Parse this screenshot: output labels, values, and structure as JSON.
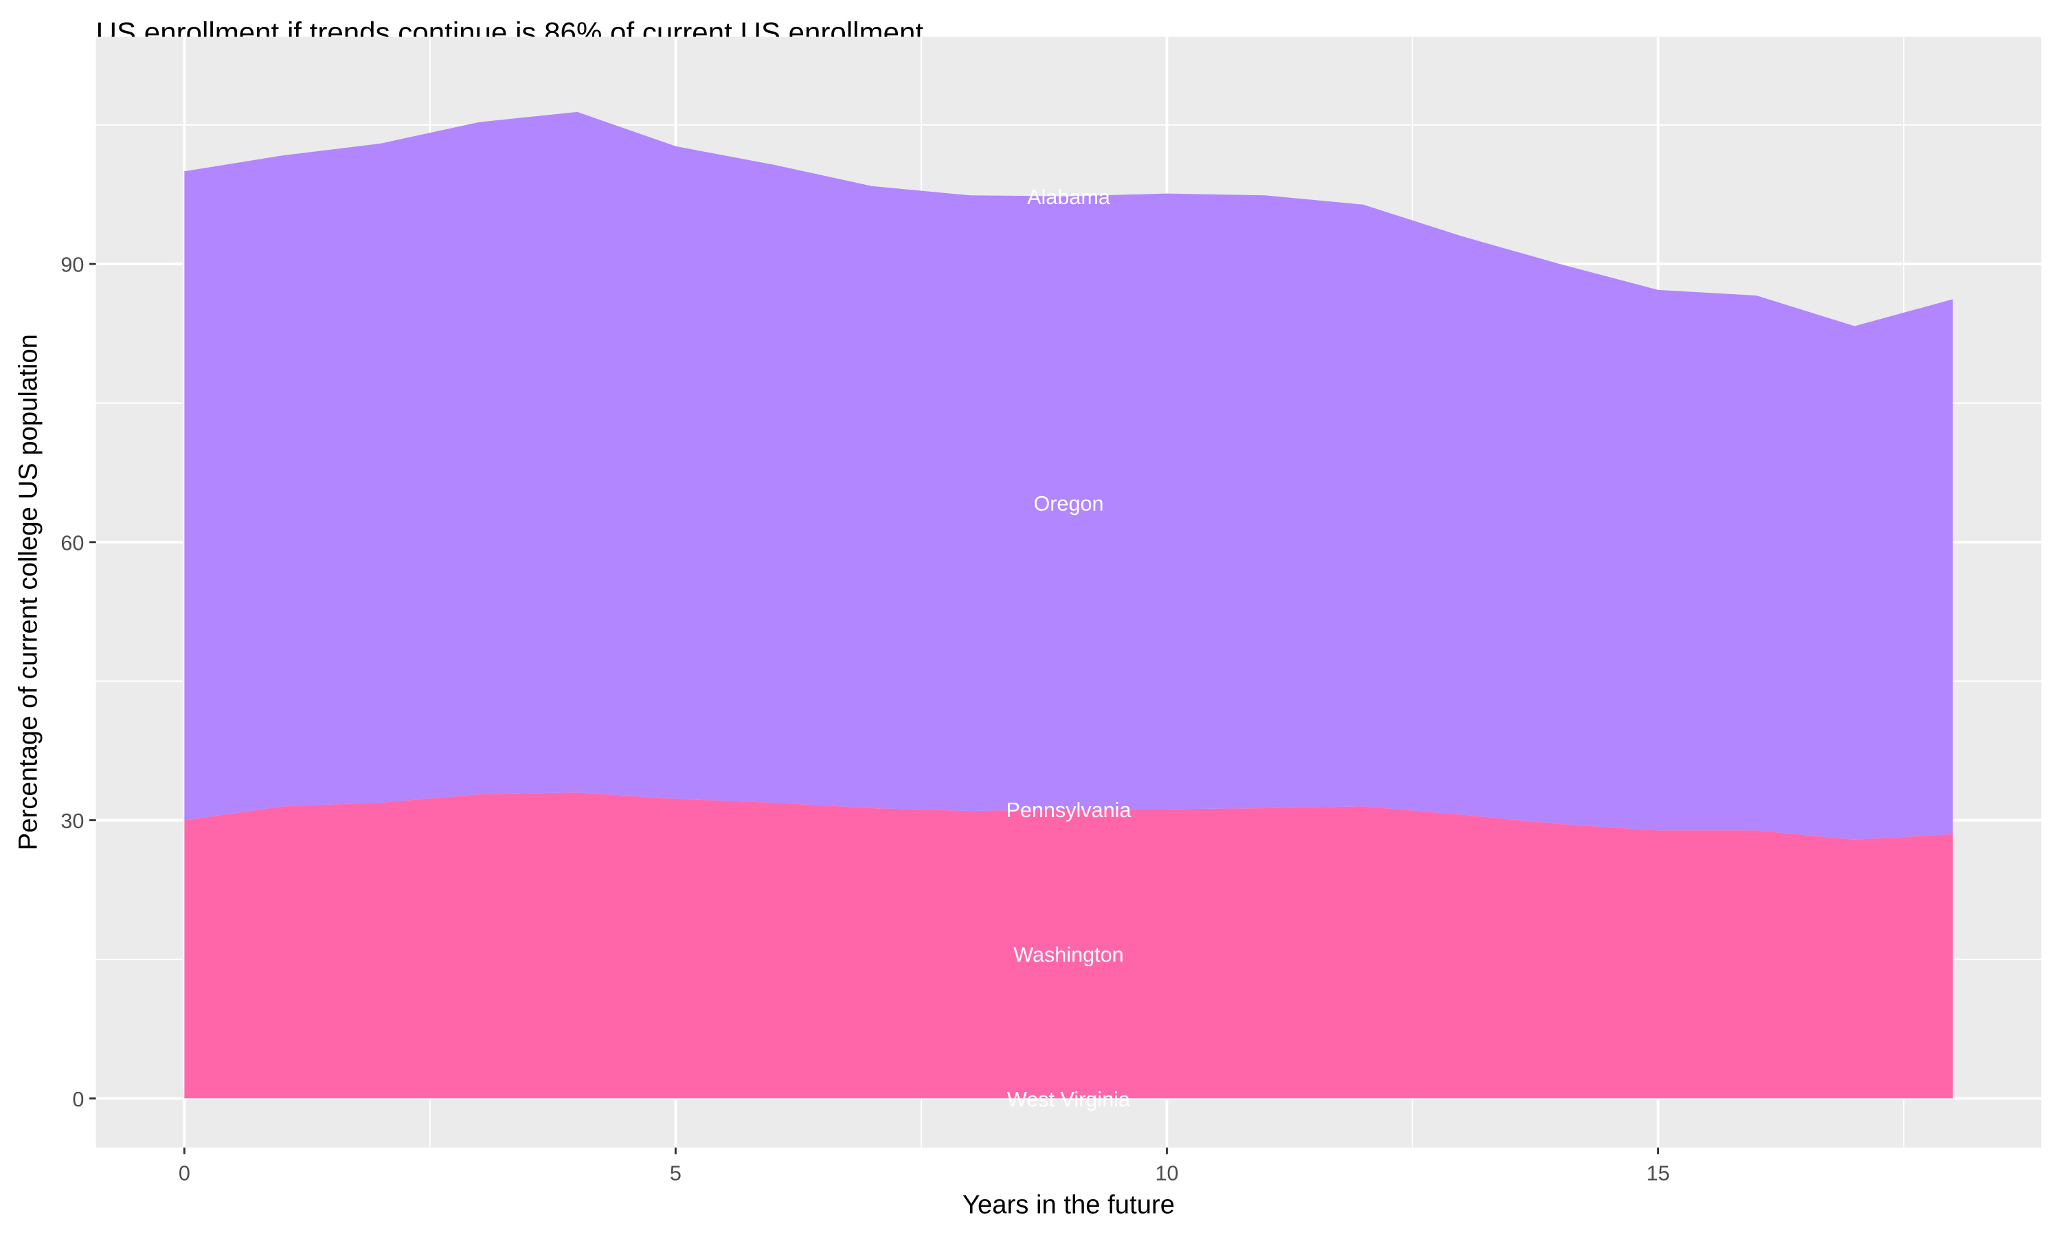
{
  "chart_data": {
    "type": "area",
    "stacked": true,
    "title": "US enrollment if trends continue is 86% of current US enrollment",
    "xlabel": "Years in the future",
    "ylabel": "Percentage of current college US population",
    "x": [
      0,
      1,
      2,
      3,
      4,
      5,
      6,
      7,
      8,
      9,
      10,
      11,
      12,
      13,
      14,
      15,
      16,
      17,
      18
    ],
    "xlim": [
      -0.9,
      18.9
    ],
    "ylim": [
      -5.3,
      114.5
    ],
    "x_ticks": [
      0,
      5,
      10,
      15
    ],
    "y_ticks": [
      0,
      30,
      60,
      90
    ],
    "x_tick_labels": [
      "0",
      "5",
      "10",
      "15"
    ],
    "y_tick_labels": [
      "0",
      "30",
      "60",
      "90"
    ],
    "grid": true,
    "legend": "none",
    "label_x": 9,
    "series": [
      {
        "name": "West Virginia",
        "color": "#FF66AA",
        "values": [
          0,
          0,
          0,
          0,
          0,
          0,
          0,
          0,
          0,
          0,
          0,
          0,
          0,
          0,
          0,
          0,
          0,
          0,
          0
        ]
      },
      {
        "name": "Washington",
        "color": "#FF66AA",
        "values": [
          30,
          31.5,
          31.9,
          32.8,
          33,
          32.3,
          31.9,
          31.3,
          31,
          31.2,
          31.2,
          31.3,
          31.5,
          30.6,
          29.6,
          28.9,
          28.9,
          27.9,
          28.5
        ]
      },
      {
        "name": "Pennsylvania",
        "color": "#B186FE",
        "values": [
          0,
          0,
          0,
          0,
          0,
          0,
          0,
          0,
          0,
          0,
          0,
          0,
          0,
          0,
          0,
          0,
          0,
          0,
          0
        ]
      },
      {
        "name": "Oregon",
        "color": "#B186FE",
        "values": [
          70,
          70.2,
          71.1,
          72.5,
          73.4,
          70.4,
          68.8,
          67.1,
          66.4,
          66.1,
          66.4,
          66.1,
          64.9,
          62.4,
          60.4,
          58.3,
          57.7,
          55.4,
          57.7
        ]
      },
      {
        "name": "Alabama",
        "color": "#B186FE",
        "values": [
          0,
          0,
          0,
          0,
          0,
          0,
          0,
          0,
          0,
          0,
          0,
          0,
          0,
          0,
          0,
          0,
          0,
          0,
          0
        ]
      }
    ],
    "colors": {
      "panel": "#EBEBEB",
      "grid": "#FFFFFF",
      "label_text": "#FFFFFF"
    }
  }
}
